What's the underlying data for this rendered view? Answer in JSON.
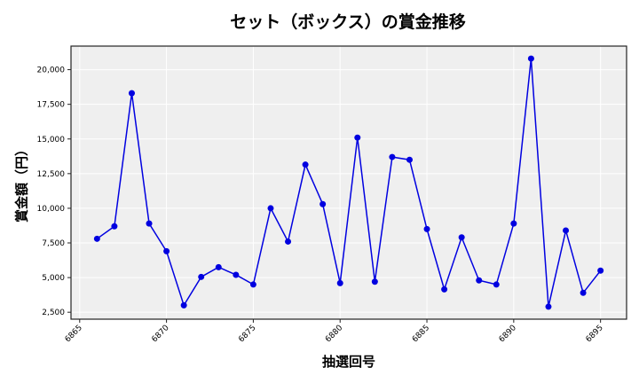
{
  "chart_data": {
    "type": "line",
    "title": "セット（ボックス）の賞金推移",
    "xlabel": "抽選回号",
    "ylabel": "賞金額（円）",
    "x": [
      6866,
      6867,
      6868,
      6869,
      6870,
      6871,
      6872,
      6873,
      6874,
      6875,
      6876,
      6877,
      6878,
      6879,
      6880,
      6881,
      6882,
      6883,
      6884,
      6885,
      6886,
      6887,
      6888,
      6889,
      6890,
      6891,
      6892,
      6893,
      6894,
      6895
    ],
    "series": [
      {
        "name": "賞金額",
        "color": "#0000e0",
        "marker": "circle",
        "values": [
          7800,
          8700,
          18300,
          8900,
          6900,
          3000,
          5050,
          5750,
          5200,
          4500,
          10000,
          7600,
          13150,
          10300,
          4600,
          15100,
          4700,
          13700,
          13500,
          8500,
          4150,
          7900,
          4800,
          4500,
          8900,
          20800,
          2900,
          8400,
          3900,
          5500
        ]
      }
    ],
    "xticks": [
      6865,
      6870,
      6875,
      6880,
      6885,
      6890,
      6895
    ],
    "xtick_labels": [
      "6865",
      "6870",
      "6875",
      "6880",
      "6885",
      "6890",
      "6895"
    ],
    "yticks": [
      2500,
      5000,
      7500,
      10000,
      12500,
      15000,
      17500,
      20000
    ],
    "ytick_labels": [
      "2,500",
      "5,000",
      "7,500",
      "10,000",
      "12,500",
      "15,000",
      "17,500",
      "20,000"
    ],
    "xlim": [
      6864.5,
      6896.5
    ],
    "ylim": [
      2000,
      21700
    ],
    "grid": true,
    "legend": null,
    "background": "#efefef"
  }
}
